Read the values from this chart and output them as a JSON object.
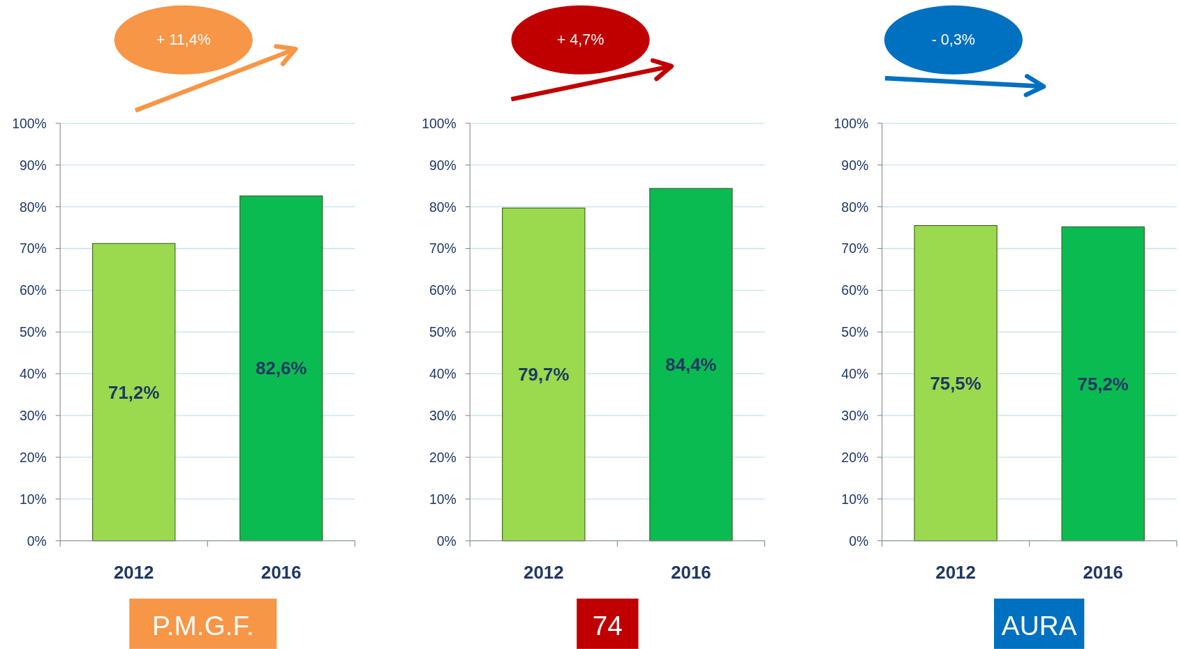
{
  "chart_data": [
    {
      "type": "bar",
      "title": "P.M.G.F.",
      "annotations": [
        "+ 11,4%"
      ],
      "categories": [
        "2012",
        "2016"
      ],
      "values": [
        71.2,
        82.6
      ],
      "colors": [
        "#9bd94f",
        "#0abb52"
      ],
      "value_labels": [
        "71,2%",
        "82,6%"
      ],
      "ylim": [
        0,
        100
      ],
      "yticks": [
        {
          "value": 0,
          "label": "0%"
        },
        {
          "value": 10,
          "label": "10%"
        },
        {
          "value": 20,
          "label": "20%"
        },
        {
          "value": 30,
          "label": "30%"
        },
        {
          "value": 40,
          "label": "40%"
        },
        {
          "value": 50,
          "label": "50%"
        },
        {
          "value": 60,
          "label": "60%"
        },
        {
          "value": 70,
          "label": "70%"
        },
        {
          "value": 80,
          "label": "80%"
        },
        {
          "value": 90,
          "label": "90%"
        },
        {
          "value": 100,
          "label": "100%"
        }
      ],
      "grid": "y"
    },
    {
      "type": "bar",
      "title": "74",
      "annotations": [
        "+ 4,7%"
      ],
      "categories": [
        "2012",
        "2016"
      ],
      "values": [
        79.7,
        84.4
      ],
      "colors": [
        "#9bd94f",
        "#0abb52"
      ],
      "value_labels": [
        "79,7%",
        "84,4%"
      ],
      "ylim": [
        0,
        100
      ],
      "yticks": [
        {
          "value": 0,
          "label": "0%"
        },
        {
          "value": 10,
          "label": "10%"
        },
        {
          "value": 20,
          "label": "20%"
        },
        {
          "value": 30,
          "label": "30%"
        },
        {
          "value": 40,
          "label": "40%"
        },
        {
          "value": 50,
          "label": "50%"
        },
        {
          "value": 60,
          "label": "60%"
        },
        {
          "value": 70,
          "label": "70%"
        },
        {
          "value": 80,
          "label": "80%"
        },
        {
          "value": 90,
          "label": "90%"
        },
        {
          "value": 100,
          "label": "100%"
        }
      ],
      "grid": "y"
    },
    {
      "type": "bar",
      "title": "AURA",
      "annotations": [
        "- 0,3%"
      ],
      "categories": [
        "2012",
        "2016"
      ],
      "values": [
        75.5,
        75.2
      ],
      "colors": [
        "#9bd94f",
        "#0abb52"
      ],
      "value_labels": [
        "75,5%",
        "75,2%"
      ],
      "ylim": [
        0,
        100
      ],
      "yticks": [
        {
          "value": 0,
          "label": "0%"
        },
        {
          "value": 10,
          "label": "10%"
        },
        {
          "value": 20,
          "label": "20%"
        },
        {
          "value": 30,
          "label": "30%"
        },
        {
          "value": 40,
          "label": "40%"
        },
        {
          "value": 50,
          "label": "50%"
        },
        {
          "value": 60,
          "label": "60%"
        },
        {
          "value": 70,
          "label": "70%"
        },
        {
          "value": 80,
          "label": "80%"
        },
        {
          "value": 90,
          "label": "90%"
        },
        {
          "value": 100,
          "label": "100%"
        }
      ],
      "grid": "y"
    }
  ]
}
